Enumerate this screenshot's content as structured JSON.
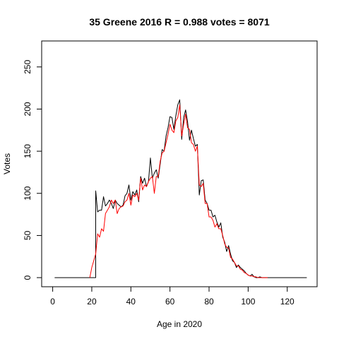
{
  "chart_data": {
    "type": "line",
    "title": "35 Greene 2016 R = 0.988 votes = 8071",
    "xlabel": "Age in 2020",
    "ylabel": "Votes",
    "xlim": [
      0,
      130
    ],
    "ylim": [
      0,
      270
    ],
    "x_ticks": [
      0,
      20,
      40,
      60,
      80,
      100,
      120
    ],
    "y_ticks": [
      0,
      50,
      100,
      150,
      200,
      250
    ],
    "grid": false,
    "legend": "none",
    "series": [
      {
        "color": "#000000",
        "points": [
          [
            1,
            0
          ],
          [
            18,
            0
          ],
          [
            22,
            0
          ],
          [
            22,
            103
          ],
          [
            23,
            78
          ],
          [
            24,
            80
          ],
          [
            25,
            80
          ],
          [
            26,
            96
          ],
          [
            27,
            85
          ],
          [
            28,
            88
          ],
          [
            29,
            92
          ],
          [
            30,
            88
          ],
          [
            31,
            82
          ],
          [
            32,
            92
          ],
          [
            33,
            88
          ],
          [
            34,
            86
          ],
          [
            35,
            84
          ],
          [
            36,
            86
          ],
          [
            37,
            97
          ],
          [
            38,
            100
          ],
          [
            39,
            110
          ],
          [
            40,
            92
          ],
          [
            41,
            102
          ],
          [
            42,
            98
          ],
          [
            43,
            104
          ],
          [
            44,
            90
          ],
          [
            45,
            120
          ],
          [
            46,
            112
          ],
          [
            47,
            118
          ],
          [
            48,
            108
          ],
          [
            49,
            114
          ],
          [
            50,
            142
          ],
          [
            51,
            118
          ],
          [
            52,
            124
          ],
          [
            53,
            128
          ],
          [
            54,
            118
          ],
          [
            55,
            135
          ],
          [
            56,
            152
          ],
          [
            57,
            150
          ],
          [
            58,
            168
          ],
          [
            59,
            178
          ],
          [
            60,
            191
          ],
          [
            61,
            190
          ],
          [
            62,
            176
          ],
          [
            63,
            192
          ],
          [
            64,
            205
          ],
          [
            65,
            211
          ],
          [
            66,
            164
          ],
          [
            67,
            190
          ],
          [
            68,
            199
          ],
          [
            69,
            185
          ],
          [
            70,
            163
          ],
          [
            71,
            175
          ],
          [
            72,
            165
          ],
          [
            73,
            156
          ],
          [
            74,
            158
          ],
          [
            75,
            98
          ],
          [
            76,
            115
          ],
          [
            77,
            116
          ],
          [
            78,
            92
          ],
          [
            79,
            88
          ],
          [
            80,
            80
          ],
          [
            81,
            80
          ],
          [
            82,
            72
          ],
          [
            83,
            74
          ],
          [
            84,
            66
          ],
          [
            85,
            60
          ],
          [
            86,
            65
          ],
          [
            87,
            48
          ],
          [
            88,
            42
          ],
          [
            89,
            31
          ],
          [
            90,
            38
          ],
          [
            91,
            28
          ],
          [
            92,
            20
          ],
          [
            93,
            18
          ],
          [
            94,
            12
          ],
          [
            95,
            15
          ],
          [
            96,
            12
          ],
          [
            97,
            10
          ],
          [
            98,
            8
          ],
          [
            99,
            5
          ],
          [
            100,
            3
          ],
          [
            101,
            2
          ],
          [
            102,
            4
          ],
          [
            103,
            1
          ],
          [
            104,
            0
          ],
          [
            105,
            0
          ],
          [
            106,
            1
          ],
          [
            107,
            0
          ],
          [
            110,
            0
          ],
          [
            130,
            0
          ]
        ]
      },
      {
        "color": "#ff0000",
        "points": [
          [
            19,
            0
          ],
          [
            20,
            12
          ],
          [
            21,
            20
          ],
          [
            22,
            28
          ],
          [
            23,
            52
          ],
          [
            24,
            48
          ],
          [
            25,
            58
          ],
          [
            26,
            55
          ],
          [
            27,
            76
          ],
          [
            28,
            80
          ],
          [
            29,
            84
          ],
          [
            30,
            92
          ],
          [
            31,
            88
          ],
          [
            32,
            92
          ],
          [
            33,
            76
          ],
          [
            34,
            82
          ],
          [
            35,
            84
          ],
          [
            36,
            85
          ],
          [
            37,
            90
          ],
          [
            38,
            92
          ],
          [
            39,
            100
          ],
          [
            40,
            86
          ],
          [
            41,
            98
          ],
          [
            42,
            96
          ],
          [
            43,
            100
          ],
          [
            44,
            92
          ],
          [
            45,
            118
          ],
          [
            46,
            104
          ],
          [
            47,
            110
          ],
          [
            48,
            108
          ],
          [
            49,
            114
          ],
          [
            50,
            118
          ],
          [
            51,
            120
          ],
          [
            52,
            100
          ],
          [
            53,
            120
          ],
          [
            54,
            120
          ],
          [
            55,
            138
          ],
          [
            56,
            148
          ],
          [
            57,
            150
          ],
          [
            58,
            160
          ],
          [
            59,
            170
          ],
          [
            60,
            182
          ],
          [
            61,
            175
          ],
          [
            62,
            172
          ],
          [
            63,
            186
          ],
          [
            64,
            190
          ],
          [
            65,
            205
          ],
          [
            66,
            168
          ],
          [
            67,
            182
          ],
          [
            68,
            194
          ],
          [
            69,
            178
          ],
          [
            70,
            176
          ],
          [
            71,
            160
          ],
          [
            72,
            158
          ],
          [
            73,
            150
          ],
          [
            74,
            156
          ],
          [
            75,
            110
          ],
          [
            76,
            108
          ],
          [
            77,
            112
          ],
          [
            78,
            88
          ],
          [
            79,
            88
          ],
          [
            80,
            72
          ],
          [
            81,
            72
          ],
          [
            82,
            68
          ],
          [
            83,
            60
          ],
          [
            84,
            64
          ],
          [
            85,
            58
          ],
          [
            86,
            58
          ],
          [
            87,
            50
          ],
          [
            88,
            40
          ],
          [
            89,
            36
          ],
          [
            90,
            35
          ],
          [
            91,
            24
          ],
          [
            92,
            22
          ],
          [
            93,
            18
          ],
          [
            94,
            14
          ],
          [
            95,
            14
          ],
          [
            96,
            10
          ],
          [
            97,
            9
          ],
          [
            98,
            6
          ],
          [
            99,
            5
          ],
          [
            100,
            3
          ],
          [
            101,
            2
          ],
          [
            102,
            2
          ],
          [
            103,
            1
          ],
          [
            104,
            1
          ],
          [
            105,
            0
          ],
          [
            110,
            0
          ]
        ]
      }
    ]
  }
}
